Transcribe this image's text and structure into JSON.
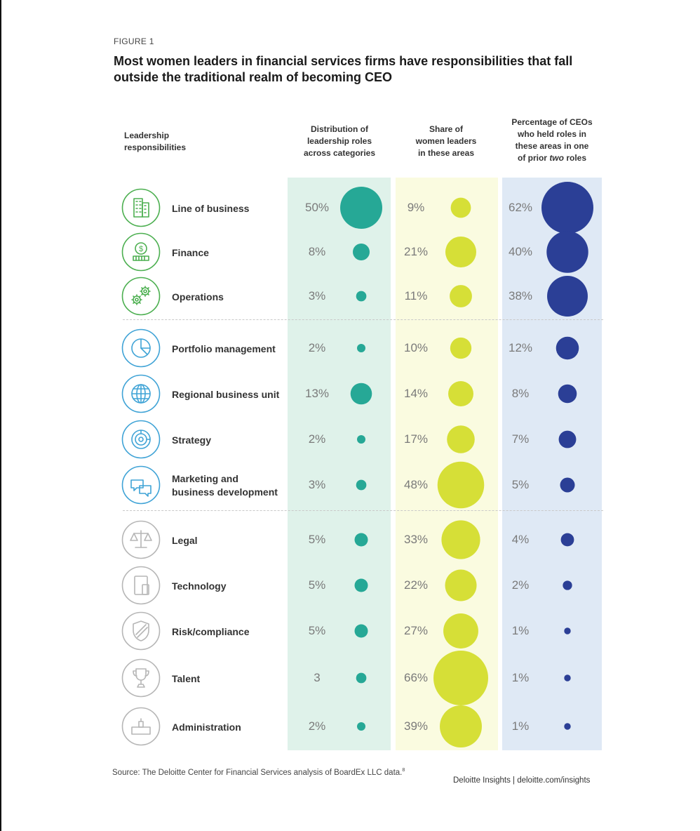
{
  "figure_label": "FIGURE 1",
  "title": "Most women leaders in financial services firms have responsibilities that fall outside the traditional realm of becoming CEO",
  "headers": {
    "responsibilities": [
      "Leadership",
      "responsibilities"
    ],
    "distribution": [
      "Distribution of",
      "leadership roles",
      "across categories"
    ],
    "share": [
      "Share of",
      "women leaders",
      "in these areas"
    ],
    "ceo": [
      "Percentage of CEOs",
      "who held roles in",
      "these areas in one",
      "of prior "
    ],
    "ceo_emphasis": "two",
    "ceo_suffix": " roles"
  },
  "colors": {
    "distribution_band": "#dff2ea",
    "distribution_dot": "#26a896",
    "share_band": "#fafbe0",
    "share_dot": "#d6df37",
    "ceo_band": "#dfe9f5",
    "ceo_dot": "#2b3f96",
    "icon_green": "#4caf50",
    "icon_blue": "#3fa3d6",
    "icon_gray": "#b6b6b6"
  },
  "chart_data": {
    "type": "table",
    "columns": [
      "Leadership responsibilities",
      "Distribution of leadership roles across categories",
      "Share of women leaders in these areas",
      "Percentage of CEOs who held roles in these areas in one of prior two roles"
    ],
    "rows": [
      {
        "name": [
          "Line of business"
        ],
        "icon": "building-icon",
        "group": "green",
        "distribution": 50,
        "distribution_label": "50%",
        "share": 9,
        "share_label": "9%",
        "ceo": 62,
        "ceo_label": "62%"
      },
      {
        "name": [
          "Finance"
        ],
        "icon": "money-bag-icon",
        "group": "green",
        "distribution": 8,
        "distribution_label": "8%",
        "share": 21,
        "share_label": "21%",
        "ceo": 40,
        "ceo_label": "40%"
      },
      {
        "name": [
          "Operations"
        ],
        "icon": "gears-icon",
        "group": "green",
        "distribution": 3,
        "distribution_label": "3%",
        "share": 11,
        "share_label": "11%",
        "ceo": 38,
        "ceo_label": "38%"
      },
      {
        "name": [
          "Portfolio management"
        ],
        "icon": "pie-chart-icon",
        "group": "blue",
        "distribution": 2,
        "distribution_label": "2%",
        "share": 10,
        "share_label": "10%",
        "ceo": 12,
        "ceo_label": "12%"
      },
      {
        "name": [
          "Regional business unit"
        ],
        "icon": "globe-icon",
        "group": "blue",
        "distribution": 13,
        "distribution_label": "13%",
        "share": 14,
        "share_label": "14%",
        "ceo": 8,
        "ceo_label": "8%"
      },
      {
        "name": [
          "Strategy"
        ],
        "icon": "target-icon",
        "group": "blue",
        "distribution": 2,
        "distribution_label": "2%",
        "share": 17,
        "share_label": "17%",
        "ceo": 7,
        "ceo_label": "7%"
      },
      {
        "name": [
          "Marketing and",
          "business development"
        ],
        "icon": "chat-bubbles-icon",
        "group": "blue",
        "distribution": 3,
        "distribution_label": "3%",
        "share": 48,
        "share_label": "48%",
        "ceo": 5,
        "ceo_label": "5%"
      },
      {
        "name": [
          "Legal"
        ],
        "icon": "scales-icon",
        "group": "gray",
        "distribution": 5,
        "distribution_label": "5%",
        "share": 33,
        "share_label": "33%",
        "ceo": 4,
        "ceo_label": "4%"
      },
      {
        "name": [
          "Technology"
        ],
        "icon": "devices-icon",
        "group": "gray",
        "distribution": 5,
        "distribution_label": "5%",
        "share": 22,
        "share_label": "22%",
        "ceo": 2,
        "ceo_label": "2%"
      },
      {
        "name": [
          "Risk/compliance"
        ],
        "icon": "shield-icon",
        "group": "gray",
        "distribution": 5,
        "distribution_label": "5%",
        "share": 27,
        "share_label": "27%",
        "ceo": 1,
        "ceo_label": "1%"
      },
      {
        "name": [
          "Talent"
        ],
        "icon": "trophy-icon",
        "group": "gray",
        "distribution": 3,
        "distribution_label": "3",
        "share": 66,
        "share_label": "66%",
        "ceo": 1,
        "ceo_label": "1%"
      },
      {
        "name": [
          "Administration"
        ],
        "icon": "desk-icon",
        "group": "gray",
        "distribution": 2,
        "distribution_label": "2%",
        "share": 39,
        "share_label": "39%",
        "ceo": 1,
        "ceo_label": "1%"
      }
    ]
  },
  "source": "Source: The Deloitte Center for Financial Services analysis of BoardEx LLC data.",
  "source_note": "8",
  "credit": "Deloitte Insights | deloitte.com/insights"
}
